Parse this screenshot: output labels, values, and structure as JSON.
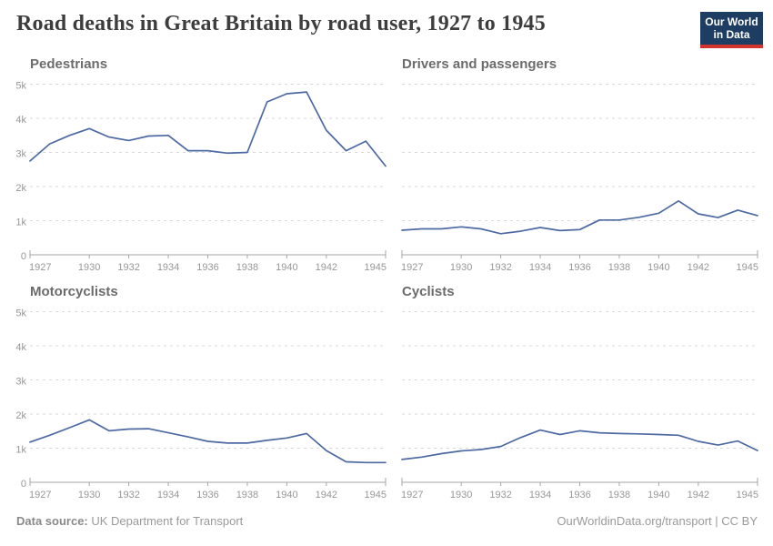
{
  "header": {
    "title": "Road deaths in Great Britain by road user, 1927 to 1945",
    "logo": {
      "line1": "Our World",
      "line2": "in Data"
    }
  },
  "footer": {
    "source_label": "Data source:",
    "source_value": "UK Department for Transport",
    "attribution": "OurWorldinData.org/transport | CC BY"
  },
  "colors": {
    "line": "#4d69a2",
    "grid": "#d8d8d8",
    "axis": "#a6a6a6",
    "tick_label": "#979797",
    "title_text": "#3d3d3d",
    "panel_title_text": "#6b6b6b",
    "logo_bg": "#1d3d63",
    "logo_accent": "#d0342c"
  },
  "chart_data": [
    {
      "type": "line",
      "title": "Pedestrians",
      "x": [
        1927,
        1928,
        1929,
        1930,
        1931,
        1932,
        1933,
        1934,
        1935,
        1936,
        1937,
        1938,
        1939,
        1940,
        1941,
        1942,
        1943,
        1944,
        1945
      ],
      "values": [
        2750,
        3250,
        3500,
        3700,
        3450,
        3350,
        3480,
        3500,
        3050,
        3050,
        2980,
        3000,
        4480,
        4720,
        4770,
        3650,
        3050,
        3330,
        2600
      ],
      "xticks": [
        1927,
        1930,
        1932,
        1934,
        1936,
        1938,
        1940,
        1942,
        1945
      ],
      "ytick_labels": [
        "0",
        "1k",
        "2k",
        "3k",
        "4k",
        "5k"
      ],
      "ylim": [
        0,
        5000
      ],
      "grid": "dashed",
      "legend": "none",
      "show_y_labels": true
    },
    {
      "type": "line",
      "title": "Drivers and passengers",
      "x": [
        1927,
        1928,
        1929,
        1930,
        1931,
        1932,
        1933,
        1934,
        1935,
        1936,
        1937,
        1938,
        1939,
        1940,
        1941,
        1942,
        1943,
        1944,
        1945
      ],
      "values": [
        720,
        760,
        760,
        820,
        760,
        620,
        690,
        800,
        710,
        740,
        1020,
        1020,
        1100,
        1220,
        1580,
        1200,
        1090,
        1310,
        1150
      ],
      "xticks": [
        1927,
        1930,
        1932,
        1934,
        1936,
        1938,
        1940,
        1942,
        1945
      ],
      "ytick_labels": [
        "0",
        "1k",
        "2k",
        "3k",
        "4k",
        "5k"
      ],
      "ylim": [
        0,
        5000
      ],
      "grid": "dashed",
      "legend": "none",
      "show_y_labels": false
    },
    {
      "type": "line",
      "title": "Motorcyclists",
      "x": [
        1927,
        1928,
        1929,
        1930,
        1931,
        1932,
        1933,
        1934,
        1935,
        1936,
        1937,
        1938,
        1939,
        1940,
        1941,
        1942,
        1943,
        1944,
        1945
      ],
      "values": [
        1180,
        1380,
        1600,
        1830,
        1510,
        1560,
        1570,
        1450,
        1330,
        1200,
        1150,
        1150,
        1230,
        1300,
        1430,
        930,
        600,
        580,
        580
      ],
      "xticks": [
        1927,
        1930,
        1932,
        1934,
        1936,
        1938,
        1940,
        1942,
        1945
      ],
      "ytick_labels": [
        "0",
        "1k",
        "2k",
        "3k",
        "4k",
        "5k"
      ],
      "ylim": [
        0,
        5000
      ],
      "grid": "dashed",
      "legend": "none",
      "show_y_labels": true
    },
    {
      "type": "line",
      "title": "Cyclists",
      "x": [
        1927,
        1928,
        1929,
        1930,
        1931,
        1932,
        1933,
        1934,
        1935,
        1936,
        1937,
        1938,
        1939,
        1940,
        1941,
        1942,
        1943,
        1944,
        1945
      ],
      "values": [
        670,
        740,
        840,
        920,
        960,
        1050,
        1310,
        1530,
        1400,
        1510,
        1450,
        1430,
        1420,
        1400,
        1380,
        1200,
        1090,
        1210,
        930
      ],
      "xticks": [
        1927,
        1930,
        1932,
        1934,
        1936,
        1938,
        1940,
        1942,
        1945
      ],
      "ytick_labels": [
        "0",
        "1k",
        "2k",
        "3k",
        "4k",
        "5k"
      ],
      "ylim": [
        0,
        5000
      ],
      "grid": "dashed",
      "legend": "none",
      "show_y_labels": false
    }
  ]
}
